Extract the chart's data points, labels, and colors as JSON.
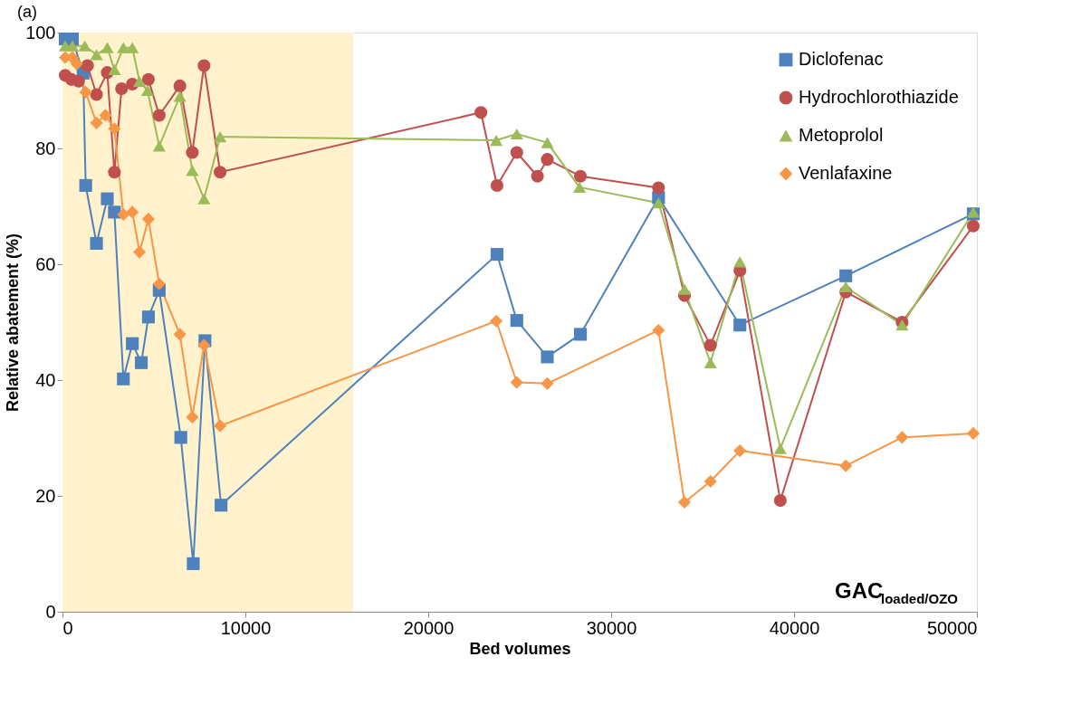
{
  "chart_data": {
    "type": "line",
    "xlabel": "Bed volumes",
    "ylabel": "Relative abatement (%)",
    "xlim": [
      0,
      50000
    ],
    "xticks": [
      0,
      10000,
      20000,
      30000,
      40000,
      50000
    ],
    "ylim": [
      0,
      100
    ],
    "yticks": [
      0,
      20,
      40,
      60,
      80,
      100
    ],
    "grid": false,
    "legend": "top right",
    "bands": [
      {
        "axis": "x",
        "from": 0,
        "to": 15900,
        "color": "#fff2cc"
      }
    ],
    "annotations": [
      "(a)",
      "GAC$_{loaded/OZO}$"
    ],
    "series": [
      {
        "name": "Diclofenac",
        "color": "#4f81bd",
        "marker": "square",
        "x": [
          150,
          540,
          1130,
          1270,
          1860,
          2450,
          2840,
          3330,
          3820,
          4310,
          4700,
          5290,
          6470,
          7150,
          7790,
          8670,
          23760,
          24840,
          26510,
          28320,
          32590,
          37040,
          42830,
          49800
        ],
        "values": [
          98.9,
          98.9,
          93,
          73.6,
          63.6,
          71.3,
          69,
          40.2,
          46.3,
          43,
          50.9,
          55.5,
          30.1,
          8.3,
          46.8,
          18.4,
          61.7,
          50.3,
          44,
          47.9,
          71.5,
          49.5,
          58,
          68.7
        ]
      },
      {
        "name": "Hydrochlorothiazide",
        "color": "#c0504d",
        "marker": "circle",
        "x": [
          150,
          490,
          880,
          1370,
          1860,
          2450,
          2840,
          3230,
          3820,
          4700,
          5290,
          6420,
          7100,
          7740,
          8620,
          22880,
          23760,
          24840,
          25970,
          26510,
          28320,
          32590,
          34010,
          35430,
          37040,
          39250,
          42830,
          45910,
          49800
        ],
        "values": [
          92.6,
          91.9,
          91.6,
          94.3,
          89.3,
          93.1,
          75.9,
          90.3,
          91.1,
          91.9,
          85.7,
          90.8,
          79.3,
          94.3,
          75.9,
          86.2,
          73.6,
          79.3,
          75.2,
          78.1,
          75.2,
          73.2,
          54.6,
          46,
          58.9,
          19.2,
          55.2,
          50,
          66.6
        ]
      },
      {
        "name": "Metoprolol",
        "color": "#9bbb59",
        "marker": "triangle",
        "x": [
          150,
          540,
          1220,
          1860,
          2450,
          2840,
          3330,
          3820,
          4210,
          4650,
          5290,
          6420,
          7100,
          7740,
          8620,
          23720,
          24840,
          26510,
          28270,
          32590,
          34010,
          35430,
          37040,
          39250,
          42830,
          45910,
          49800
        ],
        "values": [
          97.7,
          97.7,
          97.7,
          96.2,
          97.4,
          93.6,
          97.4,
          97.4,
          91.6,
          90,
          80.4,
          89,
          76.2,
          71.3,
          82,
          81.4,
          82.5,
          81,
          73.3,
          70.6,
          55.7,
          43,
          60.4,
          28.2,
          56.1,
          49.5,
          69
        ]
      },
      {
        "name": "Venlafaxine",
        "color": "#f79646",
        "marker": "diamond",
        "x": [
          150,
          540,
          780,
          1270,
          1860,
          2350,
          2840,
          3330,
          3820,
          4210,
          4700,
          5290,
          6420,
          7100,
          7740,
          8620,
          23720,
          24840,
          26510,
          32590,
          34010,
          35430,
          37040,
          42830,
          45910,
          49800
        ],
        "values": [
          95.7,
          95.7,
          94.6,
          89.7,
          84.4,
          85.7,
          83.4,
          68.6,
          69,
          62.1,
          67.8,
          56.6,
          47.9,
          33.6,
          46,
          32.1,
          50.2,
          39.6,
          39.4,
          48.6,
          18.9,
          22.5,
          27.8,
          25.2,
          30.1,
          30.8
        ]
      }
    ]
  }
}
